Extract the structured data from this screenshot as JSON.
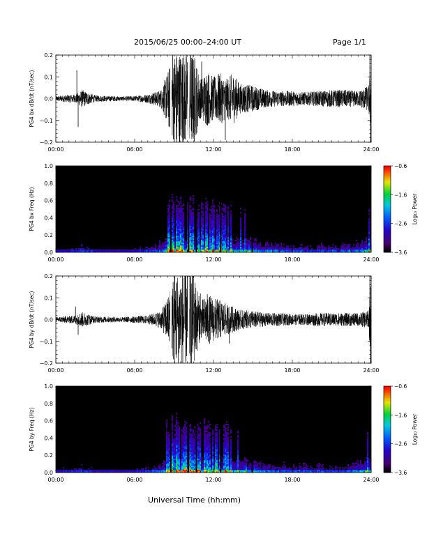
{
  "header": {
    "title": "2015/06/25  00:00–24:00 UT",
    "page": "Page 1/1"
  },
  "x_axis_title": "Universal Time (hh:mm)",
  "colors": {
    "waveform": "#000000",
    "spectrogram_background": "#000000"
  },
  "chart_data": [
    {
      "type": "line",
      "id": "bx-dbdt",
      "ylabel": "PG4 bx dB/dt (nT/sec)",
      "xlim": [
        0,
        24
      ],
      "ylim": [
        -0.2,
        0.2
      ],
      "x_ticks": [
        0,
        6,
        12,
        18,
        24
      ],
      "x_tick_labels": [
        "00:00",
        "06:00",
        "12:00",
        "18:00",
        "24:00"
      ],
      "y_ticks": [
        -0.2,
        -0.1,
        0.0,
        0.1,
        0.2
      ],
      "y_tick_labels": [
        "−0.2",
        "−0.1",
        "0.0",
        "0.1",
        "0.2"
      ],
      "envelope": {
        "hours": [
          0,
          1.5,
          2.0,
          3.0,
          5.0,
          6.0,
          7.0,
          8.0,
          8.5,
          9.0,
          9.5,
          10.0,
          10.5,
          11.0,
          11.5,
          12.0,
          12.5,
          13.0,
          13.5,
          14.0,
          15.0,
          16.0,
          17.0,
          18.0,
          19.0,
          20.0,
          21.0,
          22.0,
          23.0,
          23.8,
          24.0
        ],
        "amplitude": [
          0.012,
          0.02,
          0.04,
          0.015,
          0.01,
          0.012,
          0.02,
          0.04,
          0.12,
          0.22,
          0.22,
          0.22,
          0.22,
          0.09,
          0.13,
          0.1,
          0.12,
          0.09,
          0.12,
          0.07,
          0.06,
          0.04,
          0.035,
          0.035,
          0.03,
          0.035,
          0.04,
          0.04,
          0.035,
          0.06,
          0.2
        ]
      },
      "spikes": [
        {
          "hour": 1.6,
          "value": 0.13
        },
        {
          "hour": 1.7,
          "value": -0.13
        },
        {
          "hour": 8.9,
          "value": 0.21
        },
        {
          "hour": 9.2,
          "value": -0.21
        },
        {
          "hour": 11.1,
          "value": 0.17
        },
        {
          "hour": 12.9,
          "value": -0.19
        },
        {
          "hour": 23.9,
          "value": 0.2
        },
        {
          "hour": 23.95,
          "value": -0.21
        }
      ],
      "gaps_hours": [
        8.75,
        10.1
      ]
    },
    {
      "type": "heatmap",
      "id": "bx-freq",
      "ylabel": "PG4 bx Freq (Hz)",
      "xlim": [
        0,
        24
      ],
      "ylim": [
        0.0,
        1.0
      ],
      "x_ticks": [
        0,
        6,
        12,
        18,
        24
      ],
      "x_tick_labels": [
        "00:00",
        "06:00",
        "12:00",
        "18:00",
        "24:00"
      ],
      "y_ticks": [
        0.0,
        0.2,
        0.4,
        0.6,
        0.8,
        1.0
      ],
      "y_tick_labels": [
        "0.0",
        "0.2",
        "0.4",
        "0.6",
        "0.8",
        "1.0"
      ],
      "colorbar": {
        "label": "Log₁₀ Power",
        "range": [
          -3.6,
          -0.6
        ],
        "ticks": [
          -3.6,
          -2.6,
          -1.6,
          -0.6
        ],
        "tick_labels": [
          "−3.6",
          "−2.6",
          "−1.6",
          "−0.6"
        ]
      },
      "activity": {
        "hours": [
          0,
          1.5,
          2.0,
          3.0,
          5.0,
          6.0,
          7.0,
          8.0,
          8.5,
          9.0,
          9.5,
          10.0,
          11.0,
          12.0,
          13.0,
          14.0,
          15.0,
          16.0,
          18.0,
          20.0,
          22.0,
          23.5,
          24.0
        ],
        "level": [
          0.15,
          0.2,
          0.3,
          0.15,
          0.12,
          0.15,
          0.25,
          0.4,
          0.75,
          0.95,
          0.9,
          0.85,
          0.8,
          0.85,
          0.75,
          0.65,
          0.5,
          0.35,
          0.3,
          0.3,
          0.3,
          0.5,
          0.7
        ]
      },
      "gaps_hours": [
        8.75,
        10.1,
        10.7,
        12.55,
        14.95
      ]
    },
    {
      "type": "line",
      "id": "by-dbdt",
      "ylabel": "PG4 by dB/dt (nT/sec)",
      "xlim": [
        0,
        24
      ],
      "ylim": [
        -0.2,
        0.2
      ],
      "x_ticks": [
        0,
        6,
        12,
        18,
        24
      ],
      "x_tick_labels": [
        "00:00",
        "06:00",
        "12:00",
        "18:00",
        "24:00"
      ],
      "y_ticks": [
        -0.2,
        -0.1,
        0.0,
        0.1,
        0.2
      ],
      "y_tick_labels": [
        "−0.2",
        "−0.1",
        "0.0",
        "0.1",
        "0.2"
      ],
      "envelope": {
        "hours": [
          0,
          1.5,
          2.0,
          3.0,
          5.0,
          6.0,
          7.0,
          8.0,
          8.5,
          9.0,
          9.5,
          10.0,
          10.5,
          11.0,
          11.5,
          12.0,
          12.5,
          13.0,
          13.5,
          14.0,
          15.0,
          16.0,
          17.0,
          18.0,
          19.0,
          20.0,
          21.0,
          22.0,
          23.0,
          23.8,
          24.0
        ],
        "amplitude": [
          0.012,
          0.02,
          0.035,
          0.015,
          0.012,
          0.015,
          0.02,
          0.04,
          0.1,
          0.22,
          0.22,
          0.22,
          0.22,
          0.08,
          0.12,
          0.1,
          0.09,
          0.07,
          0.06,
          0.045,
          0.04,
          0.03,
          0.03,
          0.025,
          0.025,
          0.03,
          0.03,
          0.03,
          0.03,
          0.04,
          0.2
        ]
      },
      "spikes": [
        {
          "hour": 1.7,
          "value": -0.07
        },
        {
          "hour": 1.5,
          "value": 0.06
        },
        {
          "hour": 11.0,
          "value": 0.12
        },
        {
          "hour": 13.2,
          "value": -0.11
        },
        {
          "hour": 23.9,
          "value": 0.21
        },
        {
          "hour": 23.95,
          "value": -0.21
        }
      ],
      "gaps_hours": [
        8.75,
        10.1
      ]
    },
    {
      "type": "heatmap",
      "id": "by-freq",
      "ylabel": "PG4 by Freq (Hz)",
      "xlim": [
        0,
        24
      ],
      "ylim": [
        0.0,
        1.0
      ],
      "x_ticks": [
        0,
        6,
        12,
        18,
        24
      ],
      "x_tick_labels": [
        "00:00",
        "06:00",
        "12:00",
        "18:00",
        "24:00"
      ],
      "y_ticks": [
        0.0,
        0.2,
        0.4,
        0.6,
        0.8,
        1.0
      ],
      "y_tick_labels": [
        "0.0",
        "0.2",
        "0.4",
        "0.6",
        "0.8",
        "1.0"
      ],
      "colorbar": {
        "label": "Log₁₀ Power",
        "range": [
          -3.6,
          -0.6
        ],
        "ticks": [
          -3.6,
          -2.6,
          -1.6,
          -0.6
        ],
        "tick_labels": [
          "−3.6",
          "−2.6",
          "−1.6",
          "−0.6"
        ]
      },
      "activity": {
        "hours": [
          0,
          1.5,
          2.0,
          3.0,
          5.0,
          6.0,
          7.0,
          8.0,
          8.5,
          9.0,
          9.5,
          10.0,
          11.0,
          12.0,
          13.0,
          14.0,
          15.0,
          16.0,
          18.0,
          20.0,
          22.0,
          23.5,
          24.0
        ],
        "level": [
          0.15,
          0.2,
          0.3,
          0.15,
          0.12,
          0.15,
          0.25,
          0.4,
          0.75,
          1.0,
          0.95,
          0.85,
          0.8,
          0.8,
          0.7,
          0.6,
          0.5,
          0.35,
          0.3,
          0.3,
          0.3,
          0.45,
          0.7
        ]
      },
      "gaps_hours": [
        8.75,
        10.1,
        10.7,
        12.55,
        14.95
      ]
    }
  ]
}
